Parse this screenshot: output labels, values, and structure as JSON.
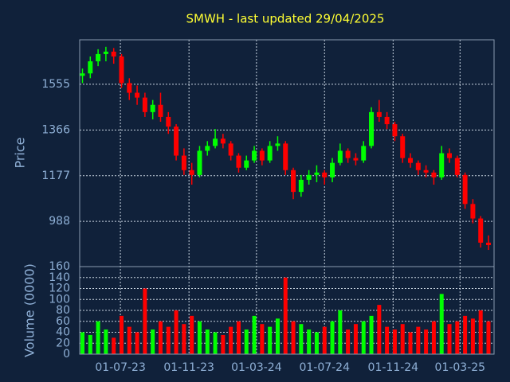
{
  "chart_data": [
    {
      "type": "candlestick",
      "title": "SMWH - last updated 29/04/2025",
      "ylabel": "Price",
      "up_color": "#00ff00",
      "down_color": "#ff0000",
      "grid": true,
      "x": [
        "2023-04-24",
        "2023-05-08",
        "2023-05-22",
        "2023-06-05",
        "2023-06-19",
        "2023-07-03",
        "2023-07-17",
        "2023-07-31",
        "2023-08-14",
        "2023-08-28",
        "2023-09-11",
        "2023-09-25",
        "2023-10-09",
        "2023-10-23",
        "2023-11-06",
        "2023-11-20",
        "2023-12-04",
        "2023-12-18",
        "2024-01-01",
        "2024-01-15",
        "2024-01-29",
        "2024-02-12",
        "2024-02-26",
        "2024-03-11",
        "2024-03-25",
        "2024-04-08",
        "2024-04-22",
        "2024-05-06",
        "2024-05-20",
        "2024-06-03",
        "2024-06-17",
        "2024-07-01",
        "2024-07-15",
        "2024-07-29",
        "2024-08-12",
        "2024-08-26",
        "2024-09-09",
        "2024-09-23",
        "2024-10-07",
        "2024-10-21",
        "2024-11-04",
        "2024-11-18",
        "2024-12-02",
        "2024-12-16",
        "2024-12-30",
        "2025-01-13",
        "2025-01-27",
        "2025-02-10",
        "2025-02-24",
        "2025-03-10",
        "2025-03-24",
        "2025-04-07",
        "2025-04-21"
      ],
      "open": [
        1590,
        1600,
        1650,
        1680,
        1690,
        1670,
        1560,
        1520,
        1500,
        1440,
        1470,
        1420,
        1380,
        1260,
        1200,
        1180,
        1280,
        1300,
        1330,
        1310,
        1260,
        1210,
        1240,
        1280,
        1240,
        1300,
        1310,
        1200,
        1110,
        1160,
        1180,
        1190,
        1170,
        1230,
        1280,
        1250,
        1240,
        1300,
        1440,
        1420,
        1390,
        1340,
        1250,
        1230,
        1200,
        1190,
        1170,
        1270,
        1250,
        1180,
        1060,
        1000,
        900
      ],
      "high": [
        1620,
        1670,
        1700,
        1710,
        1705,
        1680,
        1580,
        1550,
        1520,
        1490,
        1520,
        1440,
        1390,
        1290,
        1230,
        1300,
        1320,
        1370,
        1350,
        1320,
        1270,
        1260,
        1300,
        1290,
        1320,
        1340,
        1320,
        1210,
        1180,
        1200,
        1220,
        1200,
        1250,
        1310,
        1290,
        1270,
        1320,
        1460,
        1490,
        1440,
        1400,
        1350,
        1270,
        1240,
        1220,
        1200,
        1300,
        1290,
        1260,
        1190,
        1080,
        1010,
        930
      ],
      "low": [
        1560,
        1580,
        1630,
        1650,
        1640,
        1540,
        1490,
        1470,
        1420,
        1410,
        1400,
        1350,
        1240,
        1180,
        1140,
        1170,
        1260,
        1290,
        1290,
        1240,
        1190,
        1200,
        1230,
        1220,
        1230,
        1280,
        1180,
        1080,
        1090,
        1140,
        1150,
        1140,
        1150,
        1220,
        1230,
        1220,
        1230,
        1290,
        1400,
        1370,
        1320,
        1230,
        1210,
        1180,
        1170,
        1140,
        1160,
        1230,
        1170,
        1040,
        980,
        880,
        870
      ],
      "close": [
        1600,
        1650,
        1680,
        1690,
        1670,
        1560,
        1520,
        1500,
        1440,
        1470,
        1420,
        1380,
        1260,
        1200,
        1180,
        1280,
        1300,
        1330,
        1310,
        1260,
        1210,
        1240,
        1280,
        1240,
        1300,
        1310,
        1200,
        1110,
        1160,
        1180,
        1190,
        1170,
        1230,
        1280,
        1250,
        1240,
        1300,
        1440,
        1420,
        1390,
        1340,
        1250,
        1230,
        1200,
        1190,
        1170,
        1270,
        1250,
        1180,
        1060,
        1000,
        900,
        890
      ],
      "xlim": [
        "2023-04-19",
        "2025-05-01"
      ],
      "xticks": [
        {
          "value": "2023-07-01",
          "label": "01-07-23"
        },
        {
          "value": "2023-11-01",
          "label": "01-11-23"
        },
        {
          "value": "2024-03-01",
          "label": "01-03-24"
        },
        {
          "value": "2024-07-01",
          "label": "01-07-24"
        },
        {
          "value": "2024-11-01",
          "label": "01-11-24"
        },
        {
          "value": "2025-03-01",
          "label": "01-03-25"
        }
      ],
      "ylim": [
        801,
        1739
      ],
      "yticks": [
        988,
        1177,
        1366,
        1555
      ]
    },
    {
      "type": "bar",
      "ylabel": "Volume (0000)",
      "grid": true,
      "x": [
        "2023-04-24",
        "2023-05-08",
        "2023-05-22",
        "2023-06-05",
        "2023-06-19",
        "2023-07-03",
        "2023-07-17",
        "2023-07-31",
        "2023-08-14",
        "2023-08-28",
        "2023-09-11",
        "2023-09-25",
        "2023-10-09",
        "2023-10-23",
        "2023-11-06",
        "2023-11-20",
        "2023-12-04",
        "2023-12-18",
        "2024-01-01",
        "2024-01-15",
        "2024-01-29",
        "2024-02-12",
        "2024-02-26",
        "2024-03-11",
        "2024-03-25",
        "2024-04-08",
        "2024-04-22",
        "2024-05-06",
        "2024-05-20",
        "2024-06-03",
        "2024-06-17",
        "2024-07-01",
        "2024-07-15",
        "2024-07-29",
        "2024-08-12",
        "2024-08-26",
        "2024-09-09",
        "2024-09-23",
        "2024-10-07",
        "2024-10-21",
        "2024-11-04",
        "2024-11-18",
        "2024-12-02",
        "2024-12-16",
        "2024-12-30",
        "2025-01-13",
        "2025-01-27",
        "2025-02-10",
        "2025-02-24",
        "2025-03-10",
        "2025-03-24",
        "2025-04-07",
        "2025-04-21"
      ],
      "values": [
        40,
        35,
        60,
        45,
        30,
        70,
        50,
        40,
        120,
        45,
        60,
        50,
        80,
        55,
        70,
        60,
        45,
        40,
        35,
        50,
        60,
        45,
        70,
        55,
        50,
        65,
        140,
        60,
        55,
        45,
        40,
        50,
        60,
        80,
        45,
        55,
        60,
        70,
        90,
        50,
        45,
        55,
        40,
        50,
        45,
        60,
        110,
        55,
        60,
        70,
        65,
        80,
        60
      ],
      "ylim": [
        0,
        160
      ],
      "yticks": [
        0,
        20,
        40,
        60,
        80,
        100,
        120,
        140,
        160
      ]
    }
  ]
}
